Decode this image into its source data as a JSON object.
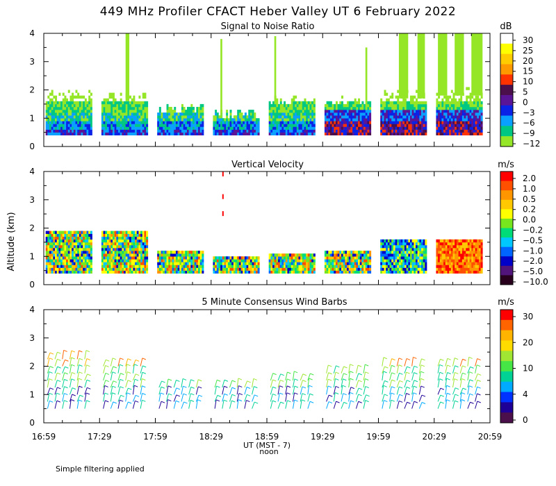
{
  "title": "449 MHz Profiler CFACT Heber Valley UT  6 February 2022",
  "ylabel": "Altitude (km)",
  "xlabel": "UT  (MST - 7)",
  "xlabel_sub": "noon",
  "footnote": "Simple filtering applied",
  "x_ticks": [
    "16:59",
    "17:29",
    "17:59",
    "18:29",
    "18:59",
    "19:29",
    "19:59",
    "20:29",
    "20:59"
  ],
  "x_range_minutes": [
    0,
    240
  ],
  "y_ticks": [
    "0",
    "1",
    "2",
    "3",
    "4"
  ],
  "chart_data": [
    {
      "type": "heatmap",
      "title": "Signal to Noise Ratio",
      "units": "dB",
      "ylim": [
        0,
        4
      ],
      "colorbar": {
        "labels": [
          "30",
          "25",
          "20",
          "15",
          "10",
          "5",
          "0",
          "−3",
          "−6",
          "−9",
          "−12"
        ],
        "colors": [
          "#ffffff",
          "#ffff00",
          "#ffcc00",
          "#ff9900",
          "#ff3300",
          "#4b0f4b",
          "#5a1496",
          "#0a22e6",
          "#0aa0ff",
          "#00c882",
          "#96e628"
        ]
      },
      "segments": [
        {
          "t0": 1,
          "t1": 26,
          "top": 1.9,
          "spikes": []
        },
        {
          "t0": 31,
          "t1": 56,
          "top": 1.7,
          "spikes": [
            [
              44,
              46,
              4.0
            ]
          ]
        },
        {
          "t0": 61,
          "t1": 86,
          "top": 1.3,
          "spikes": []
        },
        {
          "t0": 91,
          "t1": 116,
          "top": 1.1,
          "spikes": [
            [
              95,
              96,
              3.8
            ]
          ]
        },
        {
          "t0": 121,
          "t1": 146,
          "top": 1.6,
          "spikes": [
            [
              124,
              125,
              3.9
            ]
          ]
        },
        {
          "t0": 151,
          "t1": 176,
          "top": 1.6,
          "spikes": [
            [
              173,
              174,
              3.5
            ]
          ]
        },
        {
          "t0": 181,
          "t1": 206,
          "top": 1.8,
          "spikes": [
            [
              191,
              196,
              4.0
            ],
            [
              201,
              205,
              4.0
            ]
          ]
        },
        {
          "t0": 211,
          "t1": 236,
          "top": 1.9,
          "spikes": [
            [
              212,
              217,
              4.0
            ],
            [
              221,
              226,
              4.0
            ],
            [
              230,
              236,
              4.0
            ]
          ]
        }
      ]
    },
    {
      "type": "heatmap",
      "title": "Vertical Velocity",
      "units": "m/s",
      "ylim": [
        0,
        4
      ],
      "colorbar": {
        "labels": [
          "2.0",
          "1.0",
          "0.5",
          "0.2",
          "0.0",
          "−0.2",
          "−0.5",
          "−1.0",
          "−2.0",
          "−5.0",
          "−10.0"
        ],
        "colors": [
          "#ff0000",
          "#ff5000",
          "#ff9600",
          "#ffc800",
          "#ffff00",
          "#78e61e",
          "#00dc78",
          "#00c8ff",
          "#0064ff",
          "#0000c8",
          "#50147a",
          "#28001e"
        ]
      },
      "segments": [
        {
          "t0": 1,
          "t1": 26,
          "top": 1.85
        },
        {
          "t0": 31,
          "t1": 56,
          "top": 1.9
        },
        {
          "t0": 61,
          "t1": 86,
          "top": 1.2
        },
        {
          "t0": 91,
          "t1": 116,
          "top": 0.9
        },
        {
          "t0": 121,
          "t1": 146,
          "top": 1.0
        },
        {
          "t0": 151,
          "t1": 176,
          "top": 1.2
        },
        {
          "t0": 181,
          "t1": 206,
          "top": 1.6
        },
        {
          "t0": 211,
          "t1": 236,
          "top": 1.6
        }
      ]
    },
    {
      "type": "wind-barbs",
      "title": "5 Minute Consensus Wind Barbs",
      "units": "m/s",
      "ylim": [
        0,
        4
      ],
      "colorbar": {
        "labels": [
          "30",
          "20",
          "10",
          "4",
          "0"
        ],
        "colors": [
          "#ff0000",
          "#ff6400",
          "#ffb400",
          "#ffdc00",
          "#a0e632",
          "#46e646",
          "#00d296",
          "#00aaff",
          "#0032ff",
          "#1e0096",
          "#4b0f4b"
        ]
      },
      "groups": [
        {
          "t0": 1,
          "t1": 26,
          "top": 2.5
        },
        {
          "t0": 31,
          "t1": 56,
          "top": 2.1
        },
        {
          "t0": 61,
          "t1": 86,
          "top": 1.5
        },
        {
          "t0": 91,
          "t1": 116,
          "top": 1.3
        },
        {
          "t0": 121,
          "t1": 146,
          "top": 1.7
        },
        {
          "t0": 151,
          "t1": 176,
          "top": 2.0
        },
        {
          "t0": 181,
          "t1": 206,
          "top": 2.2
        },
        {
          "t0": 211,
          "t1": 236,
          "top": 2.2
        }
      ]
    }
  ]
}
